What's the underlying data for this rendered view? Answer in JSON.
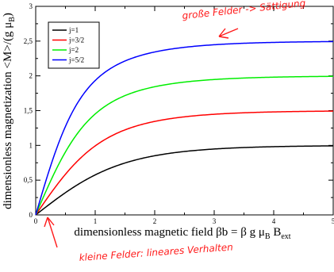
{
  "chart_data": {
    "type": "line",
    "xlabel": "dimensionless magnetic field βb = β g μB Bext",
    "ylabel": "dimensionless magnetization <M>/(g μB)",
    "xlim": [
      0,
      5
    ],
    "ylim": [
      0,
      3
    ],
    "x_ticks": [
      "0",
      "1",
      "2",
      "3",
      "4",
      "5"
    ],
    "y_ticks": [
      "0",
      "0,5",
      "1",
      "1,5",
      "2",
      "2,5",
      "3"
    ],
    "grid": false,
    "legend_position": "top-left",
    "series": [
      {
        "name": "j=1",
        "j": 1,
        "color": "#000000"
      },
      {
        "name": "j=3/2",
        "j": 1.5,
        "color": "#ff0000"
      },
      {
        "name": "j=2",
        "j": 2,
        "color": "#00ee00"
      },
      {
        "name": "j=5/2",
        "j": 2.5,
        "color": "#0000ff"
      }
    ],
    "annotations": [
      {
        "text": "große Felder -> Sättigung",
        "color": "#ff1a1a"
      },
      {
        "text": "kleine Felder: lineares Verhalten",
        "color": "#ff1a1a"
      }
    ]
  }
}
